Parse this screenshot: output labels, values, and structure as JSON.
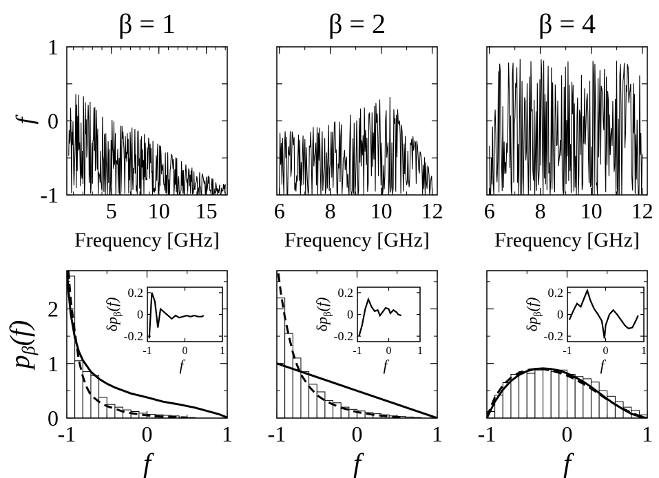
{
  "chart_data": [
    {
      "panel": "top-left",
      "type": "line",
      "title": "β = 1",
      "xlabel": "Frequency [GHz]",
      "ylabel": "f",
      "xlim": [
        0.3,
        17.2
      ],
      "ylim": [
        -1,
        1
      ],
      "xticks": [
        5,
        10,
        15
      ],
      "xtick_labels": [
        "5",
        "10",
        "15"
      ],
      "yticks": [
        -1,
        0,
        1
      ],
      "ytick_labels": [
        "-1",
        "0",
        "1"
      ],
      "signal": {
        "x_start": 0.5,
        "x_end": 17.0,
        "points": 330,
        "seed": 11,
        "envelope": [
          [
            0.5,
            0.55
          ],
          [
            4,
            0.1
          ],
          [
            9,
            -0.2
          ],
          [
            13,
            -0.6
          ],
          [
            17,
            -0.85
          ]
        ]
      }
    },
    {
      "panel": "top-middle",
      "type": "line",
      "title": "β = 2",
      "xlabel": "Frequency [GHz]",
      "ylabel": "",
      "xlim": [
        5.9,
        12.2
      ],
      "ylim": [
        -1,
        1
      ],
      "xticks": [
        6,
        8,
        10,
        12
      ],
      "xtick_labels": [
        "6",
        "8",
        "10",
        "12"
      ],
      "yticks": [
        -1,
        0,
        1
      ],
      "ytick_labels": [],
      "signal": {
        "x_start": 6.0,
        "x_end": 12.0,
        "points": 240,
        "seed": 23,
        "envelope": [
          [
            6,
            -0.15
          ],
          [
            8,
            -0.05
          ],
          [
            10.2,
            0.4
          ],
          [
            11.3,
            -0.2
          ],
          [
            12,
            -0.7
          ]
        ]
      }
    },
    {
      "panel": "top-right",
      "type": "line",
      "title": "β = 4",
      "xlabel": "Frequency [GHz]",
      "ylabel": "",
      "xlim": [
        5.9,
        12.2
      ],
      "ylim": [
        -1,
        1
      ],
      "xticks": [
        6,
        8,
        10,
        12
      ],
      "xtick_labels": [
        "6",
        "8",
        "10",
        "12"
      ],
      "yticks": [
        -1,
        0,
        1
      ],
      "ytick_labels": [],
      "signal": {
        "x_start": 6.0,
        "x_end": 12.0,
        "points": 240,
        "seed": 37,
        "envelope": [
          [
            6,
            0.9
          ],
          [
            7.5,
            0.85
          ],
          [
            9,
            0.8
          ],
          [
            10.5,
            0.85
          ],
          [
            12,
            0.75
          ]
        ]
      }
    },
    {
      "panel": "bottom-left",
      "type": "bar",
      "xlabel": "f",
      "ylabel": "p_β(f)",
      "xlim": [
        -1,
        1
      ],
      "ylim": [
        0,
        2.7
      ],
      "xticks": [
        -1,
        0,
        1
      ],
      "xtick_labels": [
        "-1",
        "0",
        "1"
      ],
      "yticks": [
        0,
        1,
        2
      ],
      "ytick_labels": [
        "0",
        "1",
        "2"
      ],
      "bin_edges_start": -1,
      "bin_width": 0.1,
      "values": [
        2.6,
        1.05,
        0.85,
        0.78,
        0.38,
        0.25,
        0.2,
        0.15,
        0.12,
        0.09,
        0.07,
        0.06,
        0.05,
        0.04,
        0.02,
        0.01,
        0.0,
        0.0,
        0.0,
        0.0
      ],
      "solid_curve": [
        [
          -0.995,
          2.65
        ],
        [
          -0.98,
          2.35
        ],
        [
          -0.95,
          1.9
        ],
        [
          -0.9,
          1.48
        ],
        [
          -0.85,
          1.22
        ],
        [
          -0.8,
          1.06
        ],
        [
          -0.7,
          0.85
        ],
        [
          -0.6,
          0.72
        ],
        [
          -0.5,
          0.63
        ],
        [
          -0.4,
          0.56
        ],
        [
          -0.2,
          0.45
        ],
        [
          0.0,
          0.38
        ],
        [
          0.2,
          0.3
        ],
        [
          0.4,
          0.25
        ],
        [
          0.6,
          0.19
        ],
        [
          0.8,
          0.11
        ],
        [
          0.9,
          0.07
        ],
        [
          1.0,
          0.01
        ]
      ],
      "dashed_curve": [
        [
          -0.98,
          2.7
        ],
        [
          -0.95,
          2.15
        ],
        [
          -0.9,
          1.58
        ],
        [
          -0.85,
          1.06
        ],
        [
          -0.8,
          0.76
        ],
        [
          -0.75,
          0.56
        ],
        [
          -0.7,
          0.42
        ],
        [
          -0.6,
          0.3
        ],
        [
          -0.5,
          0.22
        ],
        [
          -0.4,
          0.17
        ],
        [
          -0.3,
          0.12
        ],
        [
          -0.2,
          0.09
        ],
        [
          -0.1,
          0.07
        ],
        [
          0.0,
          0.05
        ],
        [
          0.1,
          0.035
        ],
        [
          0.3,
          0.02
        ],
        [
          0.5,
          0.01
        ]
      ],
      "inset": {
        "ylabel": "δp_β(f)",
        "xlabel": "f",
        "xlim": [
          -1,
          1
        ],
        "ylim": [
          -0.25,
          0.25
        ],
        "xticks": [
          -1,
          0,
          1
        ],
        "xtick_labels": [
          "-1",
          "0",
          "1"
        ],
        "yticks": [
          0.2,
          0,
          -0.2
        ],
        "ytick_labels": [
          "0.2",
          "0",
          "-0.2"
        ],
        "line": [
          [
            -0.95,
            -0.22
          ],
          [
            -0.88,
            0.2
          ],
          [
            -0.8,
            0.12
          ],
          [
            -0.72,
            -0.12
          ],
          [
            -0.65,
            0.05
          ],
          [
            -0.55,
            0.02
          ],
          [
            -0.45,
            -0.01
          ],
          [
            -0.35,
            -0.04
          ],
          [
            -0.25,
            -0.01
          ],
          [
            -0.15,
            -0.03
          ],
          [
            -0.05,
            -0.02
          ],
          [
            0.05,
            -0.01
          ],
          [
            0.15,
            -0.02
          ],
          [
            0.25,
            -0.01
          ],
          [
            0.35,
            -0.02
          ],
          [
            0.45,
            -0.02
          ],
          [
            0.5,
            -0.01
          ]
        ]
      }
    },
    {
      "panel": "bottom-middle",
      "type": "bar",
      "xlabel": "f",
      "ylabel": "",
      "xlim": [
        -1,
        1
      ],
      "ylim": [
        0,
        2.7
      ],
      "xticks": [
        -1,
        0,
        1
      ],
      "xtick_labels": [
        "-1",
        "0",
        "1"
      ],
      "yticks": [
        0,
        1,
        2
      ],
      "ytick_labels": [],
      "bin_edges_start": -1,
      "bin_width": 0.1,
      "values": [
        2.2,
        1.55,
        1.1,
        0.85,
        0.62,
        0.48,
        0.32,
        0.28,
        0.2,
        0.16,
        0.13,
        0.1,
        0.08,
        0.06,
        0.04,
        0.03,
        0.02,
        0.01,
        0.0,
        0.0
      ],
      "solid_curve": [
        [
          -1.0,
          1.0
        ],
        [
          1.0,
          0.0
        ]
      ],
      "dashed_curve": [
        [
          -0.98,
          2.65
        ],
        [
          -0.95,
          2.3
        ],
        [
          -0.9,
          1.85
        ],
        [
          -0.85,
          1.5
        ],
        [
          -0.8,
          1.2
        ],
        [
          -0.75,
          0.98
        ],
        [
          -0.7,
          0.8
        ],
        [
          -0.6,
          0.58
        ],
        [
          -0.5,
          0.42
        ],
        [
          -0.4,
          0.32
        ],
        [
          -0.3,
          0.25
        ],
        [
          -0.2,
          0.19
        ],
        [
          -0.1,
          0.15
        ],
        [
          0.0,
          0.11
        ],
        [
          0.2,
          0.06
        ],
        [
          0.4,
          0.03
        ],
        [
          0.6,
          0.01
        ]
      ],
      "inset": {
        "ylabel": "δp_β(f)",
        "xlabel": "f",
        "xlim": [
          -1,
          1
        ],
        "ylim": [
          -0.25,
          0.25
        ],
        "xticks": [
          -1,
          0,
          1
        ],
        "xtick_labels": [
          "-1",
          "0",
          "1"
        ],
        "yticks": [
          0.2,
          0,
          -0.2
        ],
        "ytick_labels": [
          "0.2",
          "0",
          "-0.2"
        ],
        "line": [
          [
            -0.95,
            -0.2
          ],
          [
            -0.85,
            -0.1
          ],
          [
            -0.75,
            0.05
          ],
          [
            -0.65,
            0.14
          ],
          [
            -0.55,
            0.07
          ],
          [
            -0.45,
            0.03
          ],
          [
            -0.35,
            0.04
          ],
          [
            -0.28,
            -0.01
          ],
          [
            -0.2,
            0.02
          ],
          [
            -0.1,
            0.06
          ],
          [
            0.0,
            0.05
          ],
          [
            0.05,
            0.01
          ],
          [
            0.15,
            0.04
          ],
          [
            0.25,
            0.02
          ],
          [
            0.3,
            0.0
          ],
          [
            0.4,
            -0.01
          ]
        ]
      }
    },
    {
      "panel": "bottom-right",
      "type": "bar",
      "xlabel": "f",
      "ylabel": "",
      "xlim": [
        -1,
        1
      ],
      "ylim": [
        0,
        2.7
      ],
      "xticks": [
        -1,
        0,
        1
      ],
      "xtick_labels": [
        "-1",
        "0",
        "1"
      ],
      "yticks": [
        0,
        1,
        2
      ],
      "ytick_labels": [],
      "bin_edges_start": -1,
      "bin_width": 0.1,
      "values": [
        0.12,
        0.42,
        0.65,
        0.8,
        0.85,
        0.82,
        0.88,
        0.9,
        0.85,
        0.88,
        0.8,
        0.76,
        0.72,
        0.66,
        0.5,
        0.4,
        0.3,
        0.2,
        0.14,
        0.06
      ],
      "solid_curve": [
        [
          -1.0,
          0.0
        ],
        [
          -0.9,
          0.3
        ],
        [
          -0.8,
          0.52
        ],
        [
          -0.7,
          0.68
        ],
        [
          -0.6,
          0.79
        ],
        [
          -0.5,
          0.86
        ],
        [
          -0.4,
          0.9
        ],
        [
          -0.3,
          0.91
        ],
        [
          -0.2,
          0.9
        ],
        [
          -0.1,
          0.87
        ],
        [
          0.0,
          0.82
        ],
        [
          0.1,
          0.75
        ],
        [
          0.2,
          0.67
        ],
        [
          0.3,
          0.57
        ],
        [
          0.4,
          0.46
        ],
        [
          0.5,
          0.35
        ],
        [
          0.6,
          0.25
        ],
        [
          0.7,
          0.16
        ],
        [
          0.8,
          0.08
        ],
        [
          0.9,
          0.03
        ],
        [
          1.0,
          0.0
        ]
      ],
      "dashed_curve": [
        [
          -1.0,
          0.02
        ],
        [
          -0.9,
          0.38
        ],
        [
          -0.8,
          0.6
        ],
        [
          -0.7,
          0.74
        ],
        [
          -0.6,
          0.83
        ],
        [
          -0.5,
          0.88
        ],
        [
          -0.4,
          0.9
        ],
        [
          -0.3,
          0.9
        ],
        [
          -0.2,
          0.87
        ],
        [
          -0.1,
          0.83
        ],
        [
          0.0,
          0.78
        ],
        [
          0.1,
          0.71
        ],
        [
          0.2,
          0.63
        ],
        [
          0.3,
          0.54
        ],
        [
          0.4,
          0.44
        ],
        [
          0.5,
          0.34
        ],
        [
          0.6,
          0.25
        ],
        [
          0.7,
          0.17
        ],
        [
          0.8,
          0.1
        ],
        [
          0.9,
          0.04
        ],
        [
          1.0,
          0.01
        ]
      ],
      "inset": {
        "ylabel": "δp_β(f)",
        "xlabel": "f",
        "xlim": [
          -1,
          1
        ],
        "ylim": [
          -0.25,
          0.25
        ],
        "xticks": [
          -1,
          0,
          1
        ],
        "xtick_labels": [
          "-1",
          "0",
          "1"
        ],
        "yticks": [
          0.2,
          0,
          -0.2
        ],
        "ytick_labels": [
          "0.2",
          "0",
          "-0.2"
        ],
        "line": [
          [
            -0.95,
            -0.05
          ],
          [
            -0.85,
            0.03
          ],
          [
            -0.75,
            0.1
          ],
          [
            -0.65,
            0.07
          ],
          [
            -0.55,
            0.16
          ],
          [
            -0.48,
            0.22
          ],
          [
            -0.4,
            0.13
          ],
          [
            -0.3,
            0.05
          ],
          [
            -0.2,
            0.0
          ],
          [
            -0.1,
            -0.06
          ],
          [
            -0.03,
            -0.22
          ],
          [
            0.0,
            -0.1
          ],
          [
            0.1,
            0.0
          ],
          [
            0.2,
            0.04
          ],
          [
            0.3,
            0.0
          ],
          [
            0.4,
            -0.05
          ],
          [
            0.5,
            -0.1
          ],
          [
            0.6,
            -0.13
          ],
          [
            0.7,
            -0.12
          ],
          [
            0.8,
            -0.05
          ],
          [
            0.85,
            -0.01
          ]
        ]
      }
    }
  ]
}
